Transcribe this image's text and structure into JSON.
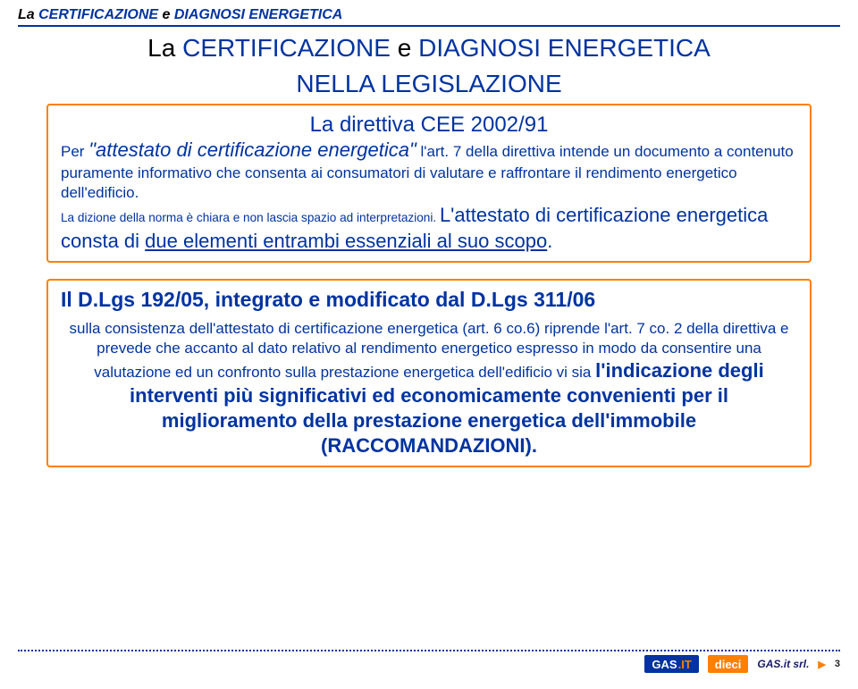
{
  "header": {
    "prefix": "La ",
    "cert": "CERTIFICAZIONE",
    "mid": " e ",
    "diag": "DIAGNOSI ENERGETICA"
  },
  "title": {
    "prefix": "La ",
    "cert": "CERTIFICAZIONE",
    "mid": " e ",
    "diag": "DIAGNOSI ENERGETICA",
    "sub": "NELLA LEGISLAZIONE"
  },
  "box1": {
    "top": "La direttiva CEE 2002/91",
    "per": "Per ",
    "quote": "\"attestato di certificazione energetica\"",
    "after": " l'art. 7 della direttiva intende un documento a contenuto puramente informativo che consenta ai consumatori di valutare e raffrontare il rendimento energetico dell'edificio.",
    "dizione": "La dizione della norma è chiara e non lascia spazio ad interpretazioni. ",
    "attestato_pre": "L'attestato di certificazione energetica consta di ",
    "due": "due elementi entrambi essenziali al suo scopo",
    "dot": "."
  },
  "box2": {
    "title": "Il D.Lgs 192/05, integrato e modificato dal D.Lgs 311/06",
    "lead": "sulla consistenza dell'attestato di certificazione energetica (art. 6 co.6) riprende l'art. 7 co. 2 della direttiva e prevede che accanto al dato relativo al rendimento energetico espresso in modo da consentire una valutazione ed un confronto sulla prestazione energetica dell'edificio vi sia ",
    "big": "l'indicazione degli interventi più significativi ed economicamente convenienti per il miglioramento della prestazione energetica dell'immobile (RACCOMANDAZIONI)."
  },
  "footer": {
    "gas": "GAS",
    "it": ".IT",
    "dieci": "dieci",
    "brand": "GAS.it srl.",
    "arrow": "▶",
    "page": "3"
  },
  "colors": {
    "blue": "#0033a0",
    "orange": "#ff7f00"
  }
}
